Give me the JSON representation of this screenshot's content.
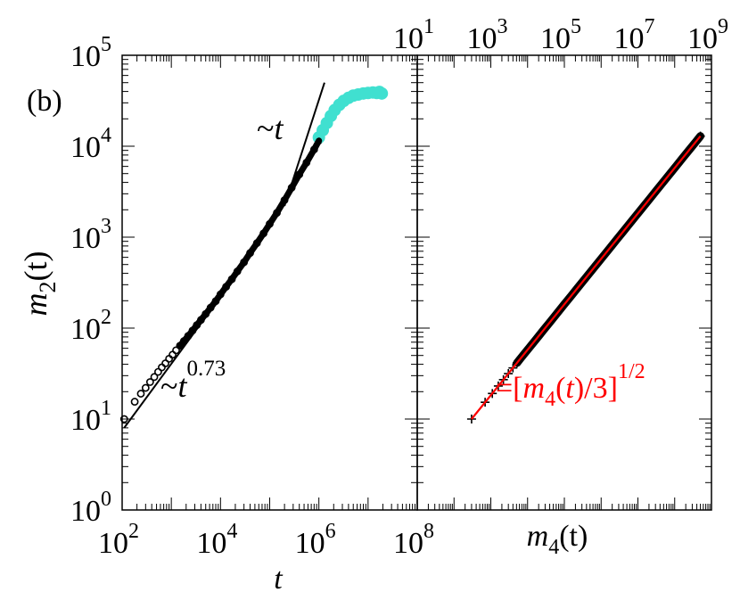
{
  "panel_label": "(b)",
  "chart_data": [
    {
      "type": "scatter",
      "panel": "left",
      "xlabel": "t",
      "ylabel_base": "m",
      "ylabel_sub": "2",
      "ylabel_arg": "(t)",
      "x_scale": "log",
      "y_scale": "log",
      "xlim": [
        100,
        100000000
      ],
      "ylim": [
        1,
        100000
      ],
      "x_ticks": [
        {
          "base": "10",
          "exp": "2",
          "value": 100
        },
        {
          "base": "10",
          "exp": "4",
          "value": 10000
        },
        {
          "base": "10",
          "exp": "6",
          "value": 1000000
        },
        {
          "base": "10",
          "exp": "8",
          "value": 100000000
        }
      ],
      "y_ticks": [
        {
          "base": "10",
          "exp": "0",
          "value": 1
        },
        {
          "base": "10",
          "exp": "1",
          "value": 10
        },
        {
          "base": "10",
          "exp": "2",
          "value": 100
        },
        {
          "base": "10",
          "exp": "3",
          "value": 1000
        },
        {
          "base": "10",
          "exp": "4",
          "value": 10000
        },
        {
          "base": "10",
          "exp": "5",
          "value": 100000
        }
      ],
      "series": [
        {
          "marker": "circle",
          "color": "#000000",
          "points": [
            [
              110,
              10
            ],
            [
              180,
              15.5
            ],
            [
              240,
              19
            ],
            [
              300,
              22
            ],
            [
              370,
              25.5
            ],
            [
              450,
              29
            ],
            [
              540,
              33
            ],
            [
              640,
              37
            ],
            [
              760,
              41
            ],
            [
              900,
              46
            ],
            [
              1060,
              51
            ],
            [
              1250,
              57
            ],
            [
              1500,
              64
            ],
            [
              1800,
              72
            ],
            [
              2200,
              82
            ],
            [
              2700,
              94
            ],
            [
              3300,
              108
            ],
            [
              4000,
              123
            ],
            [
              5000,
              143
            ],
            [
              6300,
              168
            ],
            [
              8000,
              198
            ],
            [
              10000,
              235
            ],
            [
              13000,
              285
            ],
            [
              17000,
              345
            ],
            [
              22000,
              420
            ],
            [
              30000,
              530
            ],
            [
              40000,
              670
            ],
            [
              55000,
              860
            ],
            [
              75000,
              1100
            ],
            [
              100000,
              1400
            ],
            [
              140000,
              1850
            ],
            [
              200000,
              2550
            ],
            [
              280000,
              3500
            ],
            [
              400000,
              4900
            ],
            [
              560000,
              6600
            ],
            [
              800000,
              9200
            ],
            [
              1000000,
              11500
            ]
          ]
        },
        {
          "marker": "filled-circle",
          "color": "#40e0d0",
          "points": [
            [
              1000000,
              12500
            ],
            [
              1200000,
              15000
            ],
            [
              1450000,
              18000
            ],
            [
              1750000,
              21500
            ],
            [
              2100000,
              25000
            ],
            [
              2600000,
              28500
            ],
            [
              3200000,
              31500
            ],
            [
              4000000,
              34000
            ],
            [
              5000000,
              36000
            ],
            [
              6300000,
              37000
            ],
            [
              8000000,
              38000
            ],
            [
              10000000,
              38500
            ],
            [
              12500000,
              39000
            ],
            [
              15000000,
              38500
            ],
            [
              17000000,
              39500
            ],
            [
              19000000,
              38000
            ]
          ]
        }
      ],
      "guides": [
        {
          "label_prefix": "~t",
          "label_exp": "0.73",
          "points": [
            [
              110,
              8
            ],
            [
              10000,
              220
            ]
          ]
        },
        {
          "label_prefix": "~t",
          "label_exp": "",
          "points": [
            [
              200000,
              2200
            ],
            [
              1300000,
              50000
            ]
          ]
        }
      ]
    },
    {
      "type": "scatter",
      "panel": "right",
      "xlabel_base": "m",
      "xlabel_sub": "4",
      "xlabel_arg": "(t)",
      "x_scale": "log",
      "y_scale": "log",
      "xlim": [
        10,
        1000000000
      ],
      "ylim": [
        1,
        100000
      ],
      "x_ticks": [
        {
          "base": "10",
          "exp": "1",
          "value": 10
        },
        {
          "base": "10",
          "exp": "3",
          "value": 1000
        },
        {
          "base": "10",
          "exp": "5",
          "value": 100000
        },
        {
          "base": "10",
          "exp": "7",
          "value": 10000000
        },
        {
          "base": "10",
          "exp": "9",
          "value": 1000000000
        }
      ],
      "series": [
        {
          "marker": "plus",
          "color": "#000000",
          "points": [
            [
              300,
              10
            ],
            [
              700,
              15.3
            ],
            [
              1100,
              19.1
            ],
            [
              1600,
              23.1
            ],
            [
              2200,
              27.1
            ],
            [
              3000,
              31.6
            ],
            [
              4000,
              36.5
            ],
            [
              5200,
              41.6
            ],
            [
              6600,
              46.9
            ],
            [
              8400,
              52.9
            ],
            [
              11000,
              60.6
            ],
            [
              15000,
              70.7
            ],
            [
              20000,
              81.6
            ],
            [
              27000,
              94.9
            ],
            [
              37000,
              111
            ],
            [
              50000,
              129
            ],
            [
              70000,
              153
            ],
            [
              100000,
              183
            ],
            [
              150000,
              224
            ],
            [
              220000,
              271
            ],
            [
              330000,
              332
            ],
            [
              500000,
              408
            ],
            [
              760000,
              503
            ],
            [
              1150000,
              619
            ],
            [
              1750000,
              764
            ],
            [
              2650000,
              940
            ],
            [
              4000000,
              1155
            ],
            [
              6100000,
              1426
            ],
            [
              9200000,
              1751
            ],
            [
              14000000,
              2160
            ],
            [
              21000000,
              2646
            ],
            [
              32000000,
              3266
            ],
            [
              48000000,
              4000
            ],
            [
              73000000,
              4933
            ],
            [
              110000000,
              6055
            ],
            [
              165000000,
              7416
            ],
            [
              250000000,
              9129
            ],
            [
              380000000,
              11255
            ],
            [
              500000000,
              12910
            ]
          ]
        }
      ],
      "curve": {
        "color": "#ff0000",
        "label_text": "=[m",
        "label_sub": "4",
        "label_mid": "(t)/3]",
        "label_exp": "1/2",
        "points": [
          [
            300,
            10
          ],
          [
            500000000,
            12910
          ]
        ]
      }
    }
  ]
}
